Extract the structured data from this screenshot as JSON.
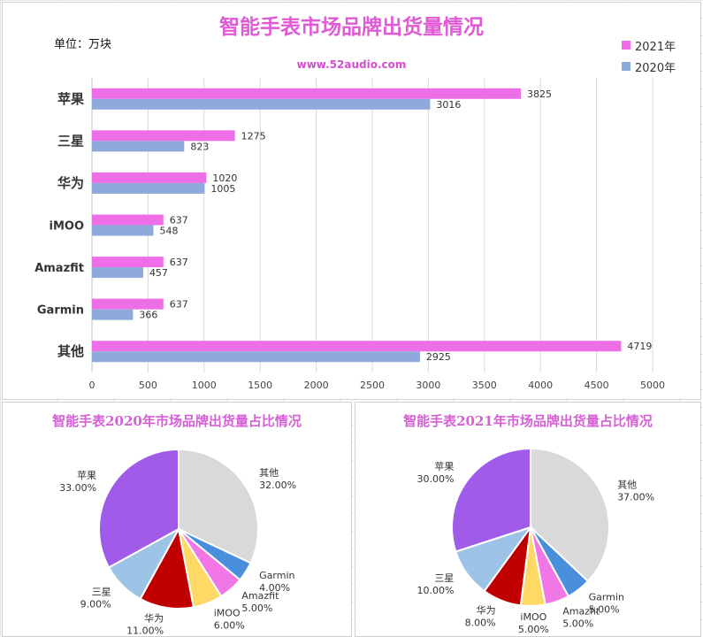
{
  "bar_panel": {
    "title": "智能手表市场品牌出货量情况",
    "unit_label": "单位：万块",
    "source": "www.52audio.com"
  },
  "pie2020_panel": {
    "title": "智能手表2020年市场品牌出货量占比情况"
  },
  "pie2021_panel": {
    "title": "智能手表2021年市场品牌出货量占比情况"
  },
  "colors": {
    "2021": "#ee6ee8",
    "2020": "#8eaadb"
  },
  "chart_data": [
    {
      "type": "bar",
      "orientation": "horizontal",
      "title": "智能手表市场品牌出货量情况",
      "unit": "单位：万块",
      "categories": [
        "苹果",
        "三星",
        "华为",
        "iMOO",
        "Amazfit",
        "Garmin",
        "其他"
      ],
      "series": [
        {
          "name": "2021年",
          "color": "#ee6ee8",
          "values": [
            3825,
            1275,
            1020,
            637,
            637,
            637,
            4719
          ]
        },
        {
          "name": "2020年",
          "color": "#8eaadb",
          "values": [
            3016,
            823,
            1005,
            548,
            457,
            366,
            2925
          ]
        }
      ],
      "xlim": [
        0,
        5000
      ],
      "xticks": [
        0,
        500,
        1000,
        1500,
        2000,
        2500,
        3000,
        3500,
        4000,
        4500,
        5000
      ],
      "grid": true,
      "legend": "top-right"
    },
    {
      "type": "pie",
      "title": "智能手表2020年市场品牌出货量占比情况",
      "slices": [
        {
          "label": "其他",
          "value": 32,
          "text": "32.00%",
          "color": "#d9d9d9"
        },
        {
          "label": "Garmin",
          "value": 4,
          "text": "4.00%",
          "color": "#4a8fdb"
        },
        {
          "label": "Amazfit",
          "value": 5,
          "text": "5.00%",
          "color": "#f277e6"
        },
        {
          "label": "iMOO",
          "value": 6,
          "text": "6.00%",
          "color": "#ffd966"
        },
        {
          "label": "华为",
          "value": 11,
          "text": "11.00%",
          "color": "#c00000"
        },
        {
          "label": "三星",
          "value": 9,
          "text": "9.00%",
          "color": "#9dc3e6"
        },
        {
          "label": "苹果",
          "value": 33,
          "text": "33.00%",
          "color": "#a05ce8"
        }
      ]
    },
    {
      "type": "pie",
      "title": "智能手表2021年市场品牌出货量占比情况",
      "slices": [
        {
          "label": "其他",
          "value": 37,
          "text": "37.00%",
          "color": "#d9d9d9"
        },
        {
          "label": "Garmin",
          "value": 5,
          "text": "5.00%",
          "color": "#4a8fdb"
        },
        {
          "label": "Amazfit",
          "value": 5,
          "text": "5.00%",
          "color": "#f277e6"
        },
        {
          "label": "iMOO",
          "value": 5,
          "text": "5.00%",
          "color": "#ffd966"
        },
        {
          "label": "华为",
          "value": 8,
          "text": "8.00%",
          "color": "#c00000"
        },
        {
          "label": "三星",
          "value": 10,
          "text": "10.00%",
          "color": "#9dc3e6"
        },
        {
          "label": "苹果",
          "value": 30,
          "text": "30.00%",
          "color": "#a05ce8"
        }
      ]
    }
  ]
}
